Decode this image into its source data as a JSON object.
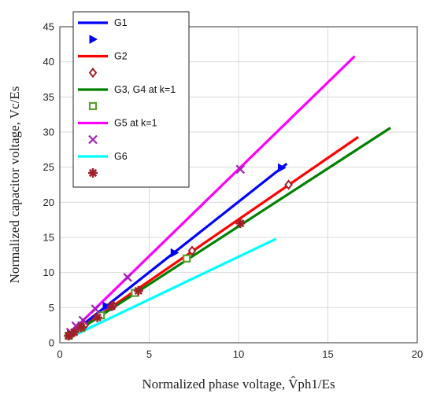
{
  "chart_data": {
    "type": "line",
    "xlabel": "Normalized phase voltage, V̂ph1/Es",
    "ylabel": "Normalized capacitor voltage, Vc/Es",
    "xlim": [
      0,
      20
    ],
    "ylim": [
      0,
      45
    ],
    "xticks": [
      0,
      5,
      10,
      15,
      20
    ],
    "yticks": [
      0,
      5,
      10,
      15,
      20,
      25,
      30,
      35,
      40,
      45
    ],
    "grid": true,
    "legend_position": "top-left",
    "series": [
      {
        "name": "G1",
        "color": "#0000ff",
        "marker": "triangle-right",
        "x": [
          0.5,
          12.7
        ],
        "y": [
          1.0,
          25.5
        ],
        "marker_x": [
          0.6,
          1.2,
          2.6,
          6.4,
          12.4
        ],
        "marker_y": [
          1.2,
          2.4,
          5.2,
          12.8,
          24.9
        ]
      },
      {
        "name": "G2",
        "color": "#ff0000",
        "marker": "diamond",
        "x": [
          0.5,
          16.7
        ],
        "y": [
          0.9,
          29.3
        ],
        "marker_x": [
          0.7,
          1.4,
          3.0,
          7.4,
          12.8
        ],
        "marker_y": [
          1.3,
          2.5,
          5.3,
          13.1,
          22.5
        ]
      },
      {
        "name": "G3, G4 at k=1",
        "color": "#008000",
        "marker": "square",
        "x": [
          0.5,
          18.5
        ],
        "y": [
          0.9,
          30.6
        ],
        "marker_x": [
          0.5,
          1.2,
          2.3,
          4.2,
          7.1
        ],
        "marker_y": [
          1.0,
          2.1,
          3.9,
          7.1,
          12.0
        ]
      },
      {
        "name": "G5 at k=1",
        "color": "#ff00ff",
        "marker": "x",
        "x": [
          0.5,
          16.5
        ],
        "y": [
          1.2,
          40.8
        ],
        "marker_x": [
          0.6,
          0.9,
          1.3,
          2.0,
          3.8,
          10.1
        ],
        "marker_y": [
          1.5,
          2.4,
          3.2,
          4.8,
          9.3,
          24.7
        ]
      },
      {
        "name": "G6",
        "color": "#00ffff",
        "marker": "asterisk",
        "x": [
          0.5,
          12.1
        ],
        "y": [
          0.7,
          14.8
        ],
        "marker_x": [
          0.5,
          0.8,
          1.2,
          2.1,
          2.9,
          4.4,
          10.1
        ],
        "marker_y": [
          1.0,
          1.5,
          2.2,
          3.6,
          5.2,
          7.4,
          17.0
        ]
      }
    ]
  }
}
